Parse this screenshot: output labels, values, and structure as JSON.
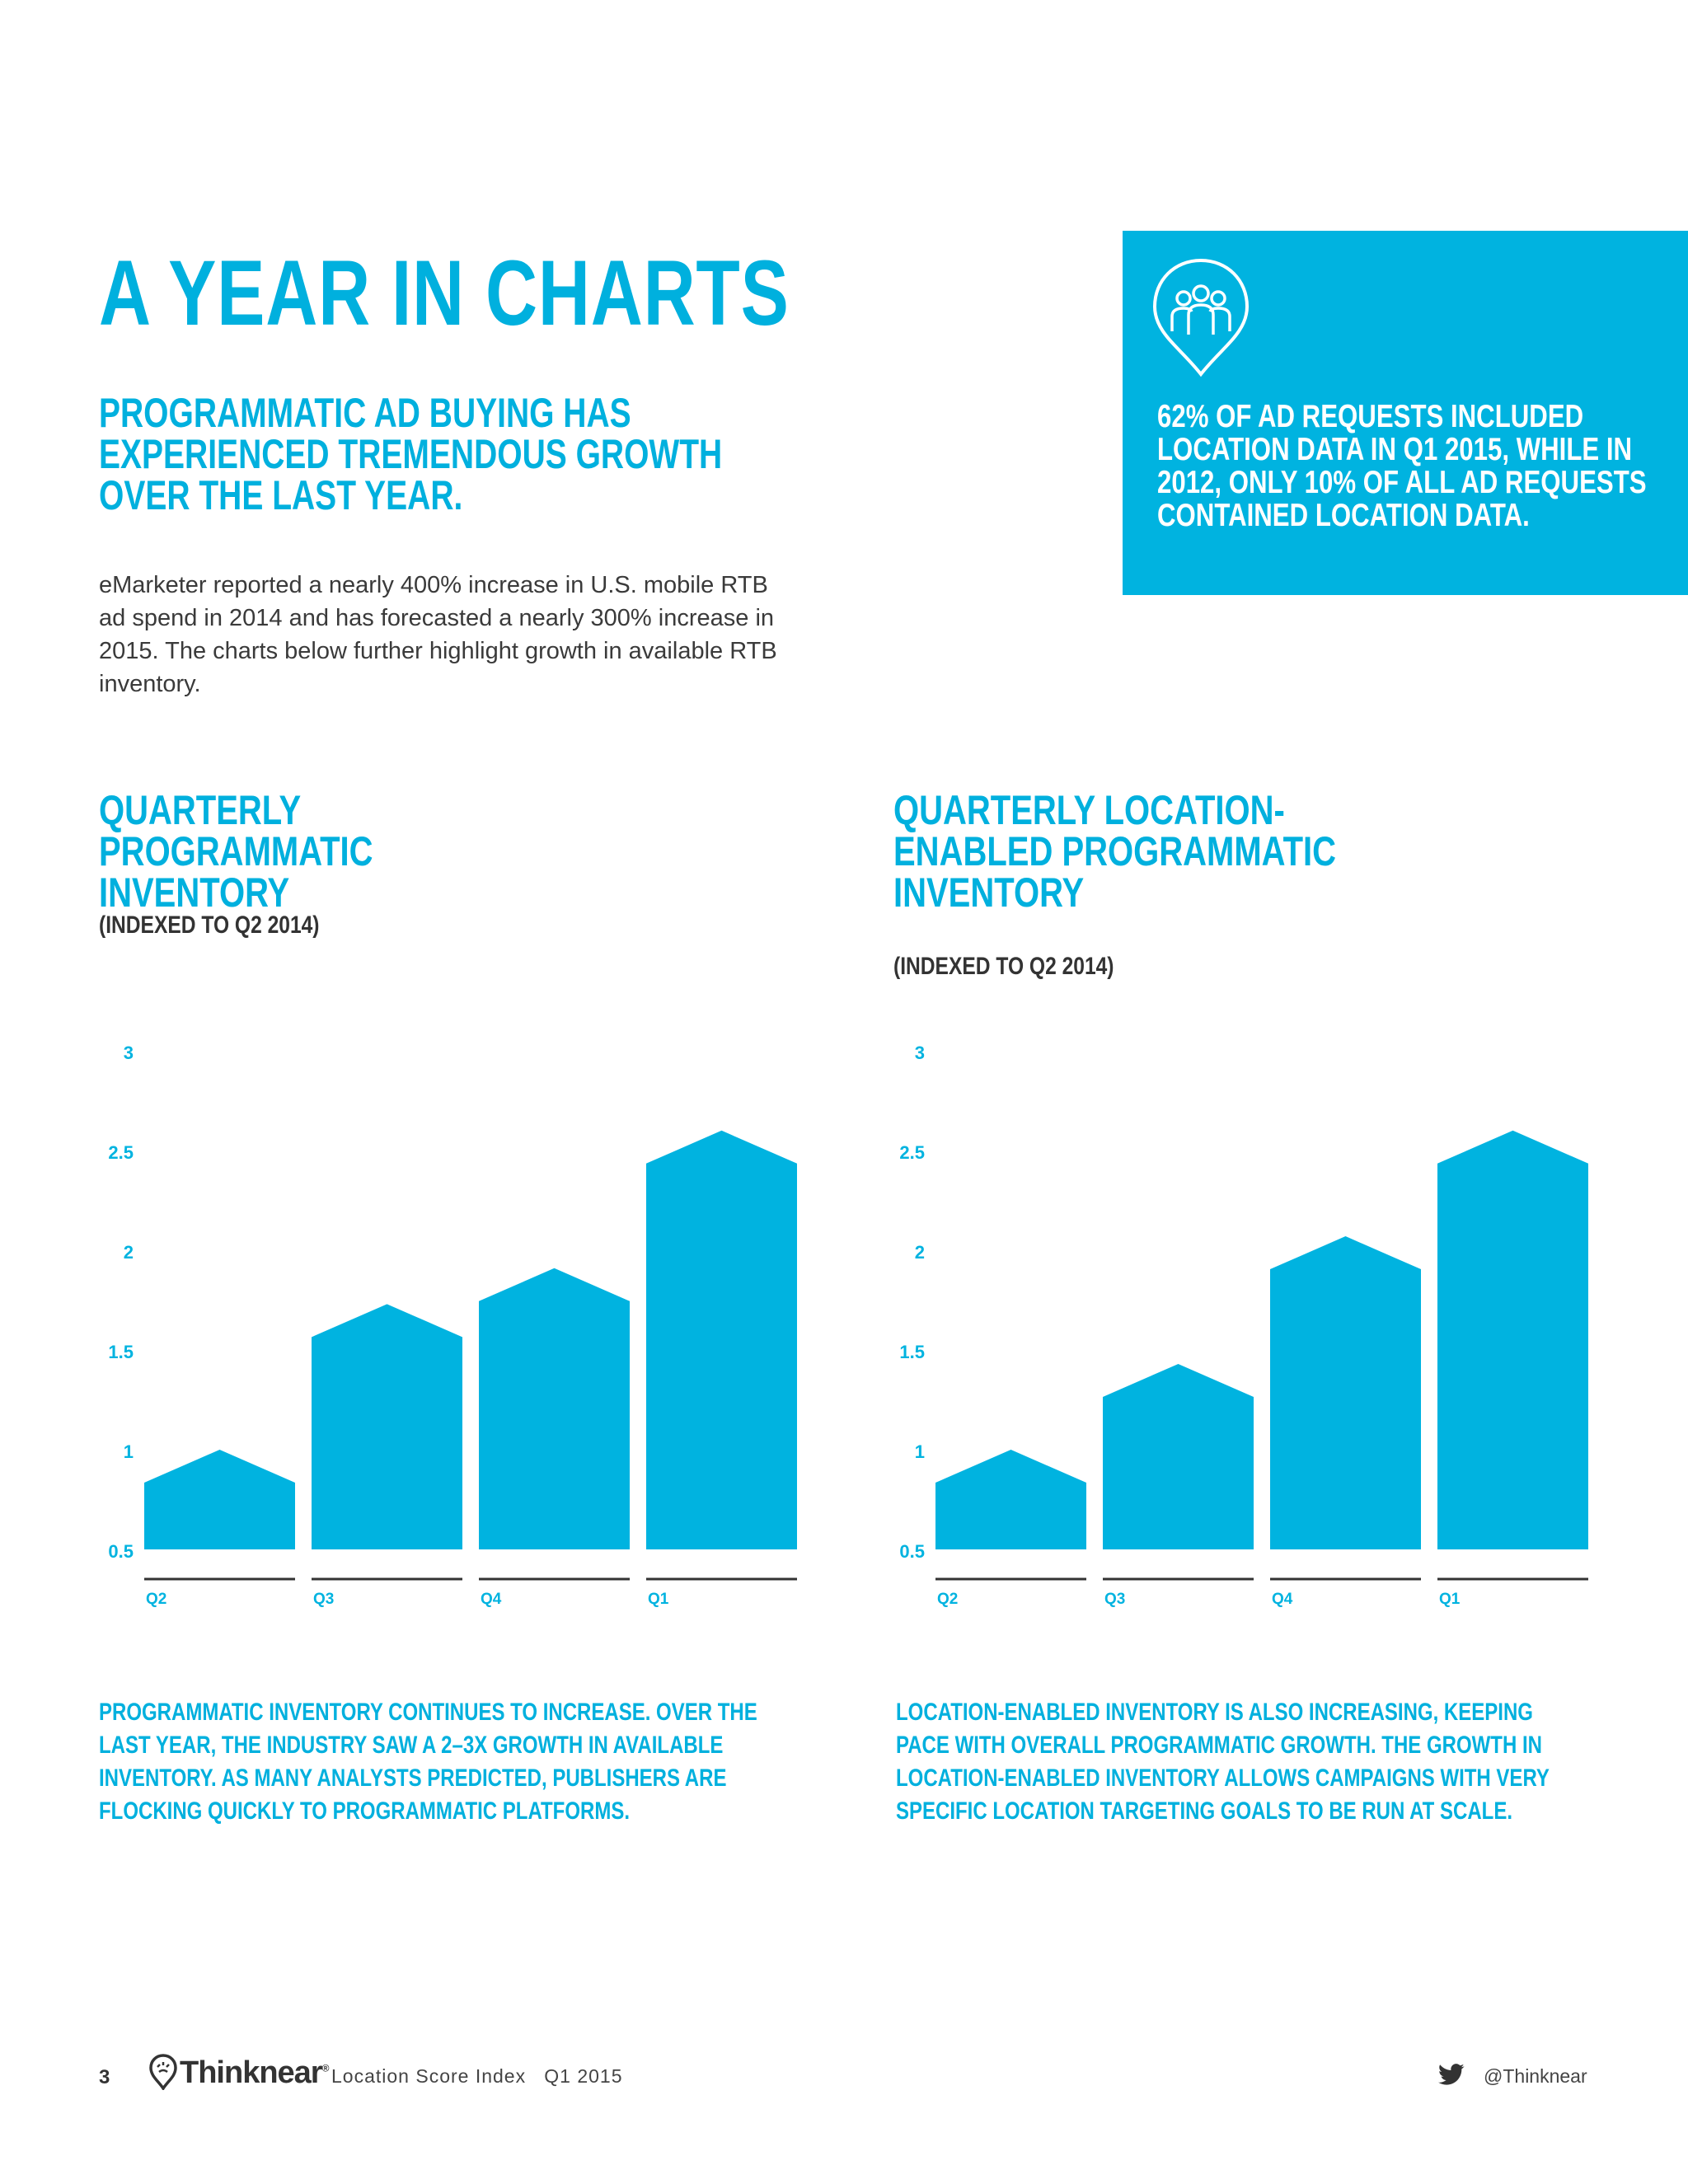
{
  "page": {
    "title": "A YEAR IN CHARTS",
    "subtitle": "PROGRAMMATIC AD BUYING HAS EXPERIENCED TREMENDOUS GROWTH OVER THE LAST YEAR.",
    "intro": "eMarketer reported a nearly 400% increase in U.S. mobile RTB ad spend in 2014 and has forecasted a nearly 300% increase in 2015. The charts below further highlight growth in available RTB inventory."
  },
  "stat_box": {
    "icon": "people-pin-icon",
    "text": "62% OF AD REQUESTS INCLUDED LOCATION DATA IN Q1 2015, WHILE IN 2012, ONLY 10% OF ALL AD REQUESTS CONTAINED LOCATION DATA."
  },
  "colors": {
    "accent": "#00b3e0",
    "text": "#333333"
  },
  "chart_data": [
    {
      "type": "bar",
      "title": "QUARTERLY PROGRAMMATIC INVENTORY",
      "subtitle": "(INDEXED TO Q2 2014)",
      "categories": [
        "Q2",
        "Q3",
        "Q4",
        "Q1"
      ],
      "values": [
        1.0,
        1.73,
        1.91,
        2.6
      ],
      "yticks": [
        "0.5",
        "1",
        "1.5",
        "2",
        "2.5",
        "3"
      ],
      "ylim": [
        0.5,
        3
      ],
      "caption": "PROGRAMMATIC INVENTORY CONTINUES TO INCREASE. OVER THE LAST YEAR, THE INDUSTRY SAW A 2–3X GROWTH IN AVAILABLE INVENTORY. AS MANY ANALYSTS PREDICTED, PUBLISHERS ARE FLOCKING QUICKLY TO PROGRAMMATIC PLATFORMS."
    },
    {
      "type": "bar",
      "title": "QUARTERLY LOCATION-ENABLED PROGRAMMATIC INVENTORY",
      "subtitle": "(INDEXED TO Q2 2014)",
      "categories": [
        "Q2",
        "Q3",
        "Q4",
        "Q1"
      ],
      "values": [
        1.0,
        1.43,
        2.07,
        2.6
      ],
      "yticks": [
        "0.5",
        "1",
        "1.5",
        "2",
        "2.5",
        "3"
      ],
      "ylim": [
        0.5,
        3
      ],
      "caption": "LOCATION-ENABLED INVENTORY IS ALSO INCREASING, KEEPING PACE WITH OVERALL PROGRAMMATIC GROWTH. THE GROWTH IN LOCATION-ENABLED INVENTORY ALLOWS CAMPAIGNS WITH VERY SPECIFIC LOCATION TARGETING GOALS TO BE RUN AT SCALE."
    }
  ],
  "footer": {
    "page_number": "3",
    "brand": "Thinknear",
    "brand_mark": "®",
    "publication": "Location Score Index   Q1 2015",
    "twitter_icon": "twitter-bird-icon",
    "handle": "@Thinknear"
  }
}
